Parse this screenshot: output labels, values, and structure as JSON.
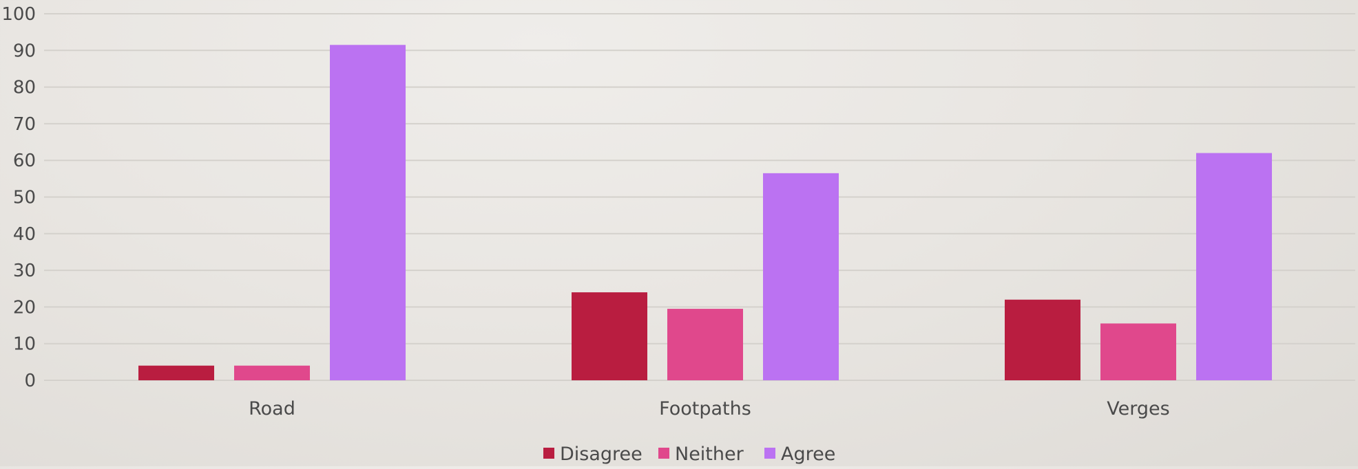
{
  "chart_data": {
    "type": "bar",
    "categories": [
      "Road",
      "Footpaths",
      "Verges"
    ],
    "series": [
      {
        "name": "Disagree",
        "values": [
          4,
          24,
          22
        ],
        "color": "#b91d40"
      },
      {
        "name": "Neither",
        "values": [
          4,
          19.5,
          15.5
        ],
        "color": "#e0488c"
      },
      {
        "name": "Agree",
        "values": [
          91.5,
          56.5,
          62
        ],
        "color": "#bb72f2"
      }
    ],
    "ylim": [
      0,
      100
    ],
    "yticks": [
      "0",
      "10",
      "20",
      "30",
      "40",
      "50",
      "60",
      "70",
      "80",
      "90",
      "100"
    ],
    "grid": true,
    "legend_position": "bottom",
    "title": "",
    "xlabel": "",
    "ylabel": ""
  }
}
